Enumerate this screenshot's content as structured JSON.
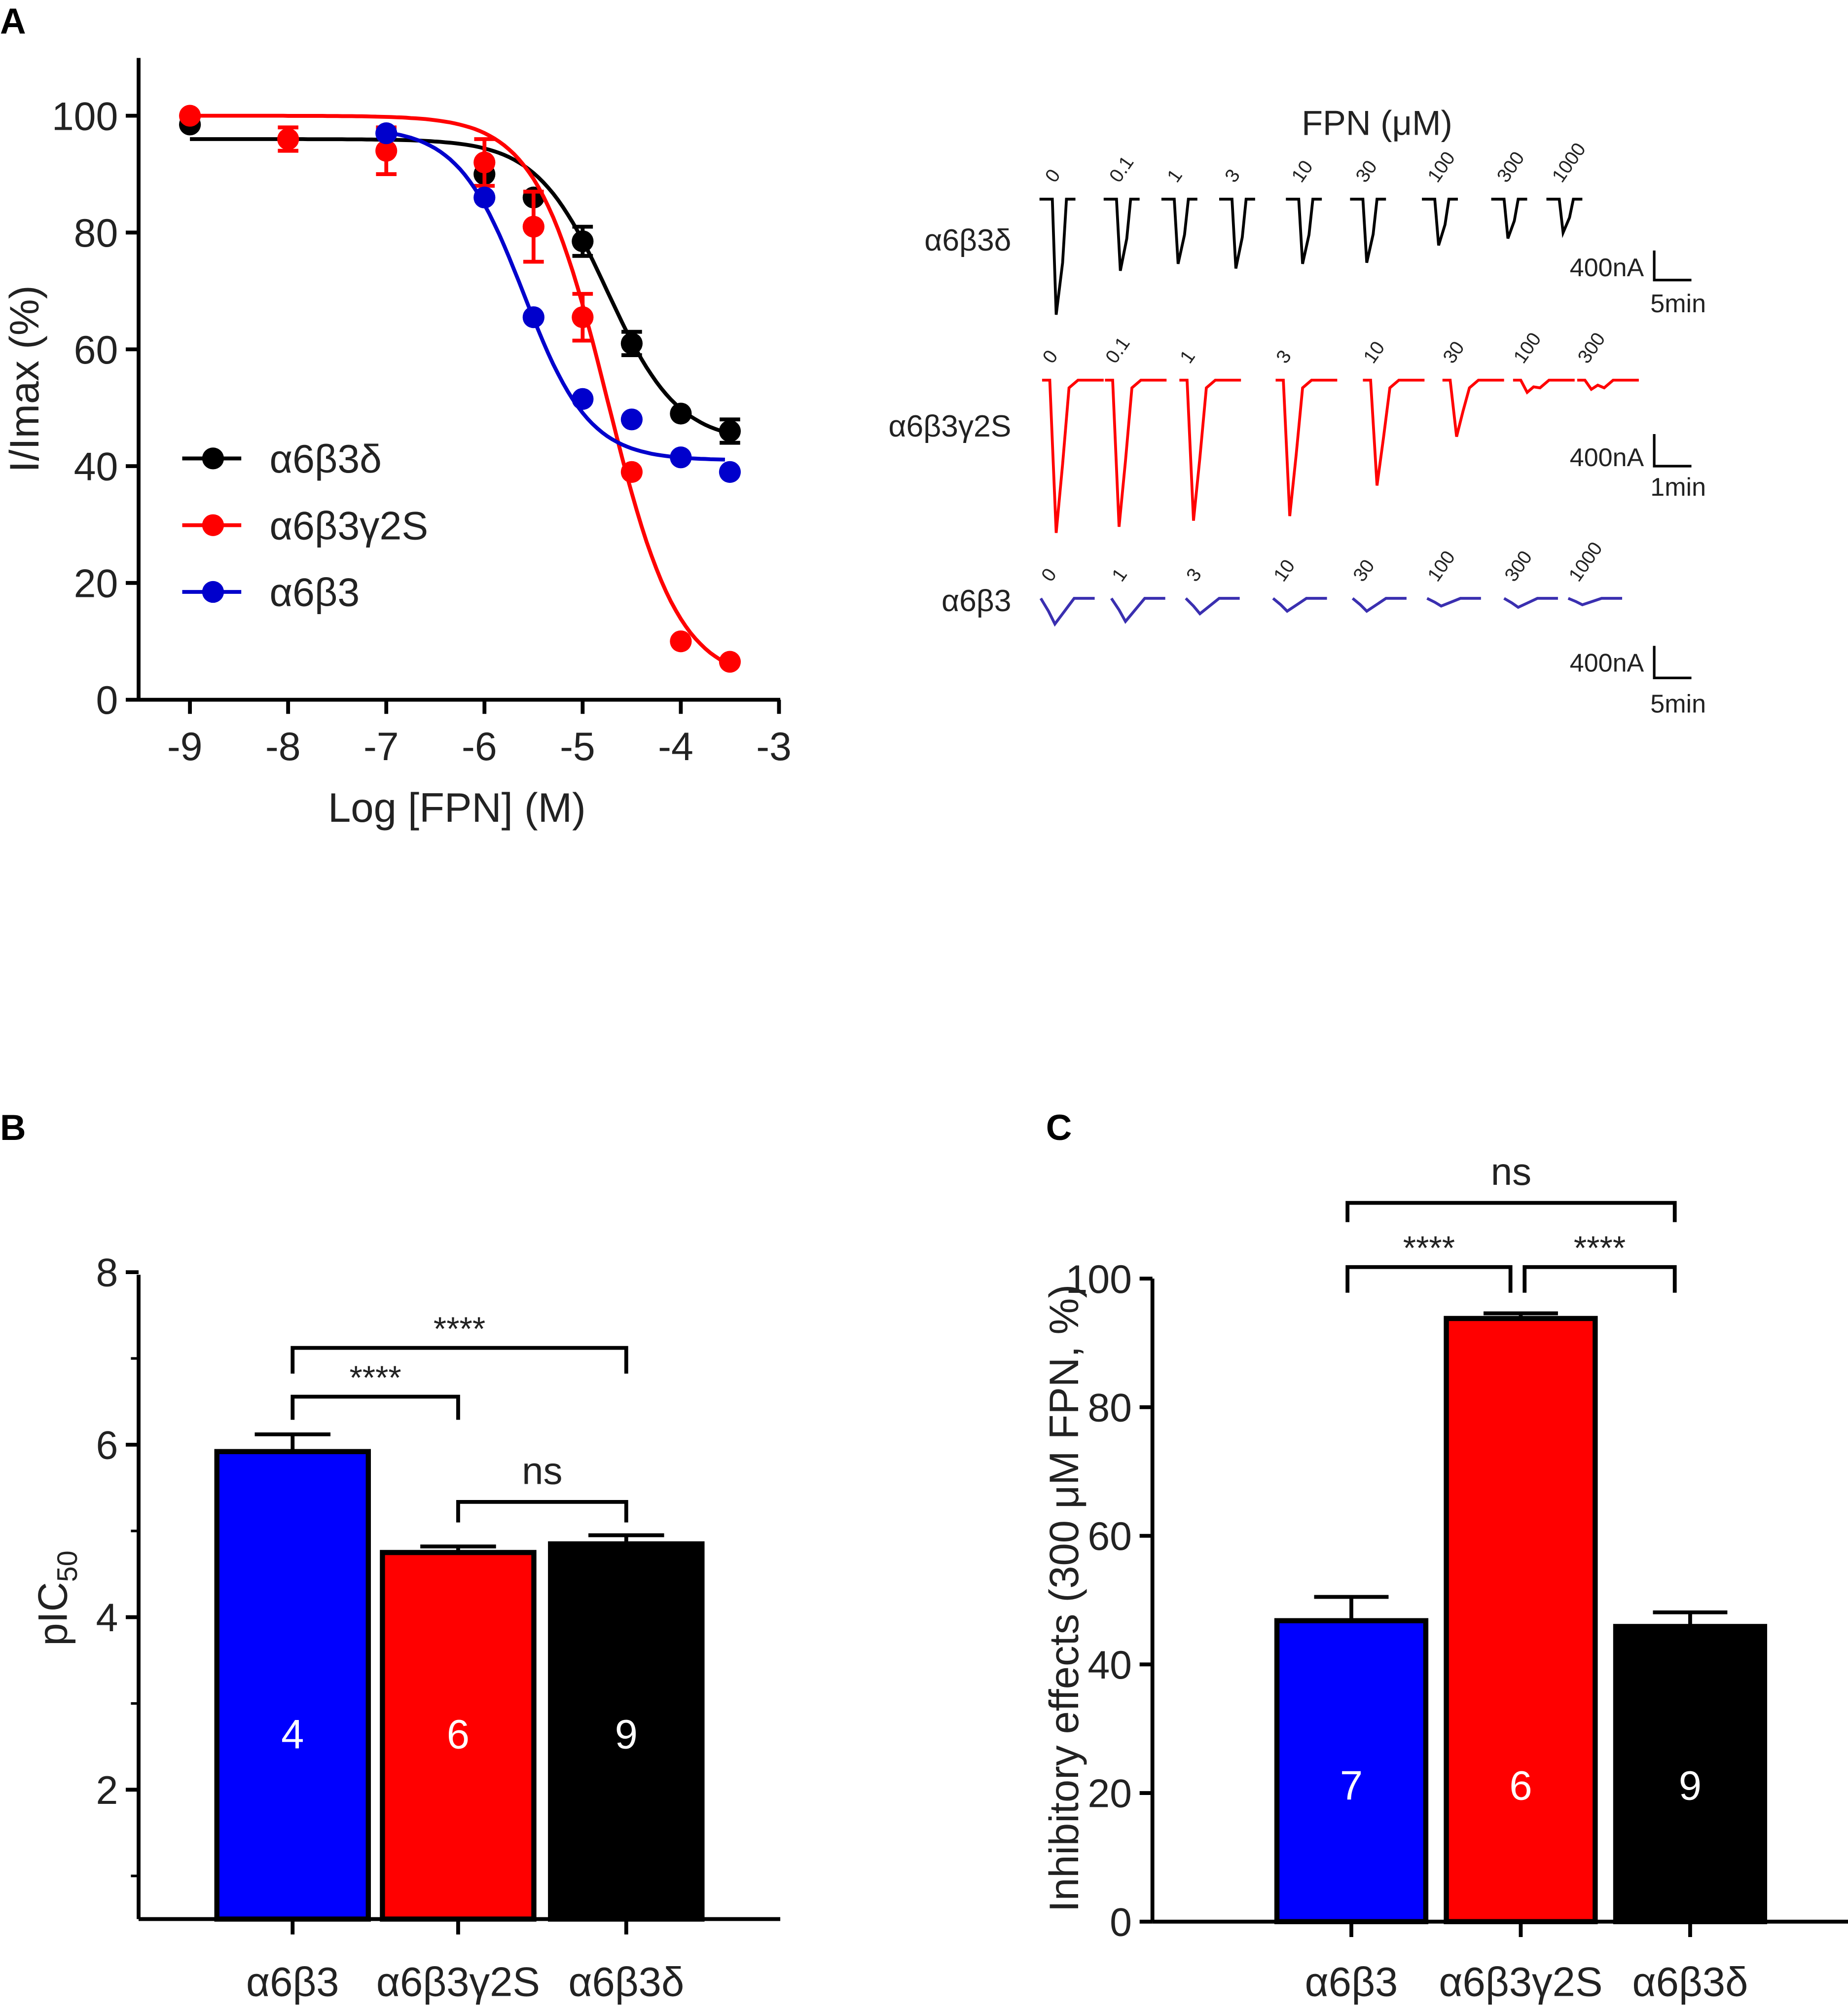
{
  "panels": {
    "a": "A",
    "b": "B",
    "c": "C"
  },
  "colors": {
    "alpha6beta3delta": "#000000",
    "alpha6beta3gamma2S": "#ff0000",
    "alpha6beta3": "#0000cc",
    "trace_blue": "#3a2fb0"
  },
  "chart_data": [
    {
      "id": "A-dose-response",
      "type": "line",
      "xlabel": "Log [FPN] (M)",
      "ylabel": "I/Imax (%)",
      "xlim": [
        -9.5,
        -3
      ],
      "ylim": [
        0,
        110
      ],
      "xticks": [
        "-9",
        "-8",
        "-7",
        "-6",
        "-5",
        "-4",
        "-3"
      ],
      "yticks": [
        "0",
        "20",
        "40",
        "60",
        "80",
        "100"
      ],
      "legend_position": "center-left",
      "series": [
        {
          "name": "α6β3δ",
          "color": "#000000",
          "x": [
            -9,
            -6,
            -5.5,
            -5,
            -4.5,
            -4,
            -3.5
          ],
          "y": [
            98.5,
            90,
            86,
            78.5,
            61,
            49,
            46
          ],
          "err": [
            0,
            0,
            0,
            2.5,
            2,
            0,
            2
          ],
          "fit": {
            "top": 96,
            "bottom": 44,
            "logIC50": -4.75,
            "hill": 1.2,
            "from": -9
          }
        },
        {
          "name": "α6β3γ2S",
          "color": "#ff0000",
          "x": [
            -9,
            -8,
            -7,
            -6,
            -5.5,
            -5,
            -4.5,
            -4,
            -3.5
          ],
          "y": [
            100,
            96,
            94,
            92,
            81,
            65.5,
            39,
            10,
            6.5
          ],
          "err": [
            0,
            2,
            4,
            4,
            6,
            4,
            0,
            0,
            0
          ],
          "fit": {
            "top": 100,
            "bottom": 3,
            "logIC50": -4.75,
            "hill": 1.2,
            "from": -9
          }
        },
        {
          "name": "α6β3",
          "color": "#0000cc",
          "x": [
            -7,
            -6,
            -5.5,
            -5,
            -4.5,
            -4,
            -3.5
          ],
          "y": [
            97,
            86,
            65.5,
            51.5,
            48,
            41.5,
            39
          ],
          "err": [
            0,
            0,
            0,
            0,
            0,
            0,
            0
          ],
          "fit": {
            "top": 98,
            "bottom": 41,
            "logIC50": -5.6,
            "hill": 1.3,
            "from": -7
          }
        }
      ]
    },
    {
      "id": "B-pIC50",
      "type": "bar",
      "ylabel": "pIC",
      "ylabel_sub": "50",
      "categories": [
        "α6β3",
        "α6β3γ2S",
        "α6β3δ"
      ],
      "values": [
        5.92,
        4.75,
        4.85
      ],
      "errors": [
        0.2,
        0.07,
        0.1
      ],
      "n": [
        "4",
        "6",
        "9"
      ],
      "colors": [
        "#0000ff",
        "#ff0000",
        "#000000"
      ],
      "ylim": [
        0.5,
        8
      ],
      "yticks": [
        "2",
        "4",
        "6",
        "8"
      ],
      "significance": [
        {
          "from": 0,
          "to": 1,
          "label": "****"
        },
        {
          "from": 0,
          "to": 2,
          "label": "****"
        },
        {
          "from": 1,
          "to": 2,
          "label": "ns"
        }
      ]
    },
    {
      "id": "C-inhibition",
      "type": "bar",
      "ylabel": "Inhibitory effects (300 μM FPN, %)",
      "categories": [
        "α6β3",
        "α6β3γ2S",
        "α6β3δ"
      ],
      "values": [
        46.8,
        93.8,
        45.9
      ],
      "errors": [
        3.7,
        0.8,
        2.2
      ],
      "n": [
        "7",
        "6",
        "9"
      ],
      "colors": [
        "#0000ff",
        "#ff0000",
        "#000000"
      ],
      "ylim": [
        0,
        100
      ],
      "yticks": [
        "0",
        "20",
        "40",
        "60",
        "80",
        "100"
      ],
      "significance": [
        {
          "from": 0,
          "to": 1,
          "label": "****"
        },
        {
          "from": 1,
          "to": 2,
          "label": "****"
        },
        {
          "from": 0,
          "to": 2,
          "label": "ns"
        }
      ]
    }
  ],
  "traces": {
    "title": "FPN (μM)",
    "rows": [
      {
        "label": "α6β3δ",
        "color": "#000000",
        "concentrations": [
          "0",
          "0.1",
          "1",
          "3",
          "10",
          "30",
          "100",
          "300",
          "1000"
        ],
        "relative_amplitude": [
          1.0,
          0.62,
          0.56,
          0.6,
          0.56,
          0.55,
          0.4,
          0.34,
          0.29
        ],
        "scale_current": "400nA",
        "scale_time": "5min"
      },
      {
        "label": "α6β3γ2S",
        "color": "#ff0000",
        "concentrations": [
          "0",
          "0.1",
          "1",
          "3",
          "10",
          "30",
          "100",
          "300"
        ],
        "relative_amplitude": [
          1.0,
          0.96,
          0.92,
          0.89,
          0.69,
          0.37,
          0.08,
          0.06
        ],
        "scale_current": "400nA",
        "scale_time": "1min"
      },
      {
        "label": "α6β3",
        "color": "#3a2fb0",
        "concentrations": [
          "0",
          "1",
          "3",
          "10",
          "30",
          "100",
          "300",
          "1000"
        ],
        "relative_amplitude": [
          1.0,
          0.9,
          0.6,
          0.5,
          0.5,
          0.3,
          0.35,
          0.25
        ],
        "scale_current": "400nA",
        "scale_time": "5min"
      }
    ]
  }
}
